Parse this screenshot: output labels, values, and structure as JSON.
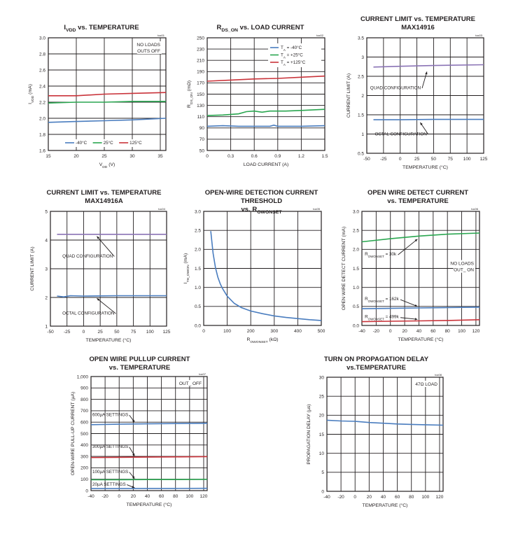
{
  "colors": {
    "blue": "#4a7dbf",
    "green": "#2aa650",
    "red": "#c9333a",
    "purple": "#8a73b5",
    "grid": "#231f20"
  },
  "chart_data": [
    {
      "id": "ivdd",
      "type": "line",
      "title": [
        {
          "t": "I"
        },
        {
          "t": "VDD",
          "sub": true
        },
        {
          "t": " vs. TEMPERATURE"
        }
      ],
      "code": "toc01",
      "xlabel": [
        {
          "t": "V"
        },
        {
          "t": "DD",
          "sub": true
        },
        {
          "t": " (V)"
        }
      ],
      "ylabel": [
        {
          "t": "I"
        },
        {
          "t": "VDD",
          "sub": true
        },
        {
          "t": " (mA)"
        }
      ],
      "xlim": [
        15,
        36
      ],
      "xticks": [
        15,
        20,
        25,
        30,
        35
      ],
      "xtick_labels": [
        "15",
        "20",
        "25",
        "30",
        "35"
      ],
      "ylim": [
        1.6,
        3.0
      ],
      "yticks": [
        1.6,
        1.8,
        2.0,
        2.2,
        2.4,
        2.6,
        2.8,
        3.0
      ],
      "ytick_labels": [
        "1.6",
        "1.8",
        "2.0",
        "2.2",
        "2.4",
        "2.6",
        "2.8",
        "3.0"
      ],
      "series": [
        {
          "name": "-40°C",
          "color": "blue",
          "x": [
            15,
            20,
            25,
            30,
            36
          ],
          "y": [
            1.95,
            1.96,
            1.97,
            1.98,
            2.0
          ]
        },
        {
          "name": "25°C",
          "color": "green",
          "x": [
            15,
            20,
            25,
            30,
            36
          ],
          "y": [
            2.19,
            2.2,
            2.2,
            2.21,
            2.21
          ]
        },
        {
          "name": "125°C",
          "color": "red",
          "x": [
            15,
            20,
            25,
            30,
            36
          ],
          "y": [
            2.28,
            2.28,
            2.3,
            2.31,
            2.32
          ]
        }
      ],
      "legend": "bottom",
      "annotations": [
        {
          "lines": [
            "NO LOADS",
            "OUTS OFF"
          ],
          "pos": "top-right"
        }
      ]
    },
    {
      "id": "rdson",
      "type": "line",
      "title": [
        {
          "t": "R"
        },
        {
          "t": "DS_ON",
          "sub": true
        },
        {
          "t": " vs. LOAD CURRENT"
        }
      ],
      "code": "toc02",
      "xlabel": [
        {
          "t": "LOAD CURRENT (A)"
        }
      ],
      "ylabel": [
        {
          "t": "R"
        },
        {
          "t": "DS_ON",
          "sub": true
        },
        {
          "t": " (mΩ)"
        }
      ],
      "xlim": [
        0,
        1.5
      ],
      "xticks": [
        0,
        0.3,
        0.6,
        0.9,
        1.2,
        1.5
      ],
      "xtick_labels": [
        "0",
        "0.3",
        "0.6",
        "0.9",
        "1.2",
        "1.5"
      ],
      "ylim": [
        50,
        250
      ],
      "yticks": [
        50,
        70,
        90,
        110,
        130,
        150,
        170,
        190,
        210,
        230,
        250
      ],
      "ytick_labels": [
        "50",
        "70",
        "90",
        "110",
        "130",
        "150",
        "170",
        "190",
        "210",
        "230",
        "250"
      ],
      "series": [
        {
          "name": [
            {
              "t": "T"
            },
            {
              "t": "A",
              "sub": true
            },
            {
              "t": " = -40°C"
            }
          ],
          "color": "blue",
          "x": [
            0,
            0.2,
            0.4,
            0.6,
            0.8,
            0.85,
            0.9,
            1.0,
            1.2,
            1.5
          ],
          "y": [
            93,
            94,
            93,
            93,
            93,
            95,
            93,
            93,
            93,
            94
          ]
        },
        {
          "name": [
            {
              "t": "T"
            },
            {
              "t": "A",
              "sub": true
            },
            {
              "t": " = +25°C"
            }
          ],
          "color": "green",
          "x": [
            0,
            0.2,
            0.4,
            0.5,
            0.6,
            0.7,
            0.8,
            1.0,
            1.2,
            1.5
          ],
          "y": [
            112,
            113,
            115,
            119,
            120,
            118,
            120,
            120,
            121,
            123
          ]
        },
        {
          "name": [
            {
              "t": "T"
            },
            {
              "t": "A",
              "sub": true
            },
            {
              "t": " = +125°C"
            }
          ],
          "color": "red",
          "x": [
            0,
            0.3,
            0.6,
            0.9,
            1.2,
            1.5
          ],
          "y": [
            173,
            175,
            177,
            178,
            180,
            182
          ]
        }
      ],
      "legend": "top-right"
    },
    {
      "id": "climit1",
      "type": "line",
      "title": [
        {
          "t": "CURRENT LIMIT vs. TEMPERATURE"
        }
      ],
      "title2": [
        {
          "t": "MAX14916"
        }
      ],
      "code": "toc03",
      "xlabel": [
        {
          "t": "TEMPERATURE (°C)"
        }
      ],
      "ylabel": [
        {
          "t": "CURRENT LIMIT (A)"
        }
      ],
      "xlim": [
        -50,
        125
      ],
      "xticks": [
        -50,
        -25,
        0,
        25,
        50,
        75,
        100,
        125
      ],
      "xtick_labels": [
        "-50",
        "-25",
        "0",
        "25",
        "50",
        "75",
        "100",
        "125"
      ],
      "ylim": [
        0.5,
        3.5
      ],
      "yticks": [
        0.5,
        1,
        1.5,
        2,
        2.5,
        3,
        3.5
      ],
      "ytick_labels": [
        "0.5",
        "1",
        "1.5",
        "2",
        "2.5",
        "3",
        "3.5"
      ],
      "series": [
        {
          "name": "QUAD CONFIGURATION",
          "color": "purple",
          "x": [
            -40,
            0,
            50,
            125
          ],
          "y": [
            2.74,
            2.76,
            2.78,
            2.8
          ]
        },
        {
          "name": "OCTAL CONFIGURATION",
          "color": "blue",
          "x": [
            -40,
            0,
            50,
            125
          ],
          "y": [
            1.37,
            1.37,
            1.38,
            1.38
          ]
        }
      ],
      "callouts": [
        {
          "text": "QUAD CONFIGURATION",
          "tx": -45,
          "ty": 2.2,
          "ax": 40,
          "ay": 2.62
        },
        {
          "text": "OCTAL CONFIGURATION",
          "tx": -38,
          "ty": 1.0,
          "ax": 30,
          "ay": 1.3
        }
      ]
    },
    {
      "id": "climit2",
      "type": "line",
      "title": [
        {
          "t": "CURRENT LIMIT vs. TEMPERATURE"
        }
      ],
      "title2": [
        {
          "t": "MAX14916A"
        }
      ],
      "code": "toc04",
      "xlabel": [
        {
          "t": "TEMPERATURE (°C)"
        }
      ],
      "ylabel": [
        {
          "t": "CURRENT LIMIT (A)"
        }
      ],
      "xlim": [
        -50,
        125
      ],
      "xticks": [
        -50,
        -25,
        0,
        25,
        50,
        75,
        100,
        125
      ],
      "xtick_labels": [
        "-50",
        "-25",
        "0",
        "25",
        "50",
        "75",
        "100",
        "125"
      ],
      "ylim": [
        1,
        5
      ],
      "yticks": [
        1,
        2,
        3,
        4,
        5
      ],
      "ytick_labels": [
        "1",
        "2",
        "3",
        "4",
        "5"
      ],
      "series": [
        {
          "name": "QUAD CONFIGURATION",
          "color": "purple",
          "x": [
            -40,
            0,
            50,
            125
          ],
          "y": [
            4.2,
            4.2,
            4.2,
            4.2
          ]
        },
        {
          "name": "OCTAL CONFIGURATION",
          "color": "blue",
          "x": [
            -40,
            -30,
            -20,
            0,
            50,
            125
          ],
          "y": [
            2.05,
            2.02,
            2.06,
            2.05,
            2.06,
            2.06
          ]
        }
      ],
      "callouts": [
        {
          "text": "QUAD CONFIGURATION",
          "tx": -32,
          "ty": 3.44,
          "ax": 20,
          "ay": 4.13
        },
        {
          "text": "OCTAL CONFIGURATION",
          "tx": -32,
          "ty": 1.45,
          "ax": 20,
          "ay": 1.97
        }
      ]
    },
    {
      "id": "owthresh",
      "type": "line",
      "title": [
        {
          "t": "OPEN-WIRE DETECTION CURRENT THRESHOLD"
        }
      ],
      "title2": [
        {
          "t": "vs. R"
        },
        {
          "t": "OWONSET",
          "sub": true
        }
      ],
      "code": "toc05",
      "xlabel": [
        {
          "t": "R"
        },
        {
          "t": "OWONSET",
          "sub": true
        },
        {
          "t": " (kΩ)"
        }
      ],
      "ylabel": [
        {
          "t": "I"
        },
        {
          "t": "TH_OWON",
          "sub": true
        },
        {
          "t": " (mA)"
        }
      ],
      "xlim": [
        0,
        500
      ],
      "xticks": [
        0,
        100,
        200,
        300,
        400,
        500
      ],
      "xtick_labels": [
        "0",
        "100",
        "200",
        "300",
        "400",
        "500"
      ],
      "ylim": [
        0,
        3.0
      ],
      "yticks": [
        0,
        0.5,
        1.0,
        1.5,
        2.0,
        2.5,
        3.0
      ],
      "ytick_labels": [
        "0.0",
        "0.5",
        "1.0",
        "1.5",
        "2.0",
        "2.5",
        "3.0"
      ],
      "series": [
        {
          "name": "",
          "color": "blue",
          "x": [
            30,
            40,
            50,
            60,
            70,
            80,
            100,
            130,
            160,
            200,
            250,
            300,
            350,
            400,
            450,
            500
          ],
          "y": [
            2.48,
            1.9,
            1.52,
            1.27,
            1.1,
            0.97,
            0.77,
            0.58,
            0.47,
            0.38,
            0.31,
            0.25,
            0.21,
            0.18,
            0.15,
            0.13
          ]
        }
      ]
    },
    {
      "id": "owdetect",
      "type": "line",
      "title": [
        {
          "t": "OPEN WIRE DETECT CURRENT"
        }
      ],
      "title2": [
        {
          "t": "vs. TEMPERATURE"
        }
      ],
      "code": "toc06",
      "xlabel": [
        {
          "t": "TEMPERATURE (°C)"
        }
      ],
      "ylabel": [
        {
          "t": "OPEN WIRE DETECT CURRENT (mA)"
        }
      ],
      "xlim": [
        -40,
        125
      ],
      "xticks": [
        -40,
        -20,
        0,
        20,
        40,
        60,
        80,
        100,
        120
      ],
      "xtick_labels": [
        "-40",
        "-20",
        "0",
        "20",
        "40",
        "60",
        "80",
        "100",
        "120"
      ],
      "ylim": [
        0,
        3.0
      ],
      "yticks": [
        0,
        0.5,
        1.0,
        1.5,
        2.0,
        2.5,
        3.0
      ],
      "ytick_labels": [
        "0.0",
        "0.5",
        "1.0",
        "1.5",
        "2.0",
        "2.5",
        "3.0"
      ],
      "series": [
        {
          "name": [
            {
              "t": "R"
            },
            {
              "t": "OWONSET",
              "sub": true
            },
            {
              "t": " = 30k"
            }
          ],
          "color": "green",
          "x": [
            -40,
            0,
            40,
            80,
            125
          ],
          "y": [
            2.2,
            2.28,
            2.35,
            2.4,
            2.43
          ]
        },
        {
          "name": [
            {
              "t": "R"
            },
            {
              "t": "OWONSET",
              "sub": true
            },
            {
              "t": " = 162k"
            }
          ],
          "color": "blue",
          "x": [
            -40,
            0,
            40,
            80,
            125
          ],
          "y": [
            0.44,
            0.45,
            0.46,
            0.47,
            0.48
          ]
        },
        {
          "name": [
            {
              "t": "R"
            },
            {
              "t": "OWONSET",
              "sub": true
            },
            {
              "t": " = 499k"
            }
          ],
          "color": "red",
          "x": [
            -40,
            0,
            40,
            80,
            125
          ],
          "y": [
            0.1,
            0.11,
            0.12,
            0.13,
            0.15
          ]
        }
      ],
      "callouts": [
        {
          "text": [
            {
              "t": "R"
            },
            {
              "t": "OWONSET",
              "sub": true
            },
            {
              "t": " = 30k"
            }
          ],
          "tx": -36,
          "ty": 1.88,
          "ax": 38,
          "ay": 2.27
        },
        {
          "text": [
            {
              "t": "R"
            },
            {
              "t": "OWONSET",
              "sub": true
            },
            {
              "t": " = 162k"
            }
          ],
          "tx": -36,
          "ty": 0.7,
          "ax": 38,
          "ay": 0.5
        },
        {
          "text": [
            {
              "t": "R"
            },
            {
              "t": "OWONSET",
              "sub": true
            },
            {
              "t": " = 499k"
            }
          ],
          "tx": -36,
          "ty": 0.23,
          "ax": 38,
          "ay": 0.16
        }
      ],
      "annotations": [
        {
          "lines": [
            "NO LOADS",
            "OUT_ ON"
          ],
          "pos": "mid-right"
        }
      ]
    },
    {
      "id": "pullup",
      "type": "line",
      "title": [
        {
          "t": "OPEN WIRE PULLUP CURRENT"
        }
      ],
      "title2": [
        {
          "t": "vs. TEMPERATURE"
        }
      ],
      "code": "toc07",
      "xlabel": [
        {
          "t": "TEMPERATURE (°C)"
        }
      ],
      "ylabel": [
        {
          "t": "OPEN-WIRE PULL-UP CURRENT (µA)"
        }
      ],
      "xlim": [
        -40,
        125
      ],
      "xticks": [
        -40,
        -20,
        0,
        20,
        40,
        60,
        80,
        100,
        120
      ],
      "xtick_labels": [
        "-40",
        "-20",
        "0",
        "20",
        "40",
        "60",
        "80",
        "100",
        "120"
      ],
      "ylim": [
        0,
        1000
      ],
      "yticks": [
        0,
        100,
        200,
        300,
        400,
        500,
        600,
        700,
        800,
        900,
        1000
      ],
      "ytick_labels": [
        "0",
        "100",
        "200",
        "300",
        "400",
        "500",
        "600",
        "700",
        "800",
        "900",
        "1,000"
      ],
      "series": [
        {
          "name": "600µA SETTINGS",
          "color": "blue",
          "x": [
            -40,
            0,
            40,
            80,
            125
          ],
          "y": [
            578,
            582,
            585,
            588,
            590
          ]
        },
        {
          "name": "300µA SETTINGS",
          "color": "red",
          "x": [
            -40,
            0,
            40,
            80,
            125
          ],
          "y": [
            290,
            292,
            294,
            296,
            298
          ]
        },
        {
          "name": "100µA SETTINGS",
          "color": "green",
          "x": [
            -40,
            0,
            40,
            80,
            125
          ],
          "y": [
            95,
            96,
            97,
            97,
            98
          ]
        },
        {
          "name": "20µA SETTINGS",
          "color": "blue",
          "x": [
            -40,
            0,
            40,
            80,
            125
          ],
          "y": [
            18,
            18,
            19,
            19,
            20
          ]
        }
      ],
      "callouts": [
        {
          "text": "600µA SETTINGS",
          "tx": -38,
          "ty": 665,
          "ax": 22,
          "ay": 598
        },
        {
          "text": "300µA SETTINGS",
          "tx": -38,
          "ty": 385,
          "ax": 22,
          "ay": 304
        },
        {
          "text": "100µA SETTINGS",
          "tx": -38,
          "ty": 165,
          "ax": 22,
          "ay": 105
        },
        {
          "text": "20µA SETTINGS",
          "tx": -38,
          "ty": 55,
          "ax": 22,
          "ay": 25
        }
      ],
      "annotations": [
        {
          "lines": [
            "OUT_ OFF"
          ],
          "pos": "top-right"
        }
      ]
    },
    {
      "id": "propdelay",
      "type": "line",
      "title": [
        {
          "t": "TURN ON PROPAGATION DELAY"
        }
      ],
      "title2": [
        {
          "t": "vs.TEMPERATURE"
        }
      ],
      "code": "toc08",
      "xlabel": [
        {
          "t": "TEMPERATURE (°C)"
        }
      ],
      "ylabel": [
        {
          "t": "PROPAGATION DELAY (µs)"
        }
      ],
      "xlim": [
        -40,
        125
      ],
      "xticks": [
        -40,
        -20,
        0,
        20,
        40,
        60,
        80,
        100,
        120
      ],
      "xtick_labels": [
        "-40",
        "-20",
        "0",
        "20",
        "40",
        "60",
        "80",
        "100",
        "120"
      ],
      "ylim": [
        0,
        30
      ],
      "yticks": [
        0,
        5,
        10,
        15,
        20,
        25,
        30
      ],
      "ytick_labels": [
        "0",
        "5",
        "10",
        "15",
        "20",
        "25",
        "30"
      ],
      "series": [
        {
          "name": "",
          "color": "blue",
          "x": [
            -40,
            -20,
            0,
            20,
            40,
            60,
            80,
            100,
            125
          ],
          "y": [
            18.7,
            18.5,
            18.4,
            18.1,
            17.9,
            17.7,
            17.6,
            17.5,
            17.4
          ]
        }
      ],
      "annotations": [
        {
          "lines": [
            "47Ω LOAD"
          ],
          "pos": "top-right"
        }
      ]
    }
  ]
}
